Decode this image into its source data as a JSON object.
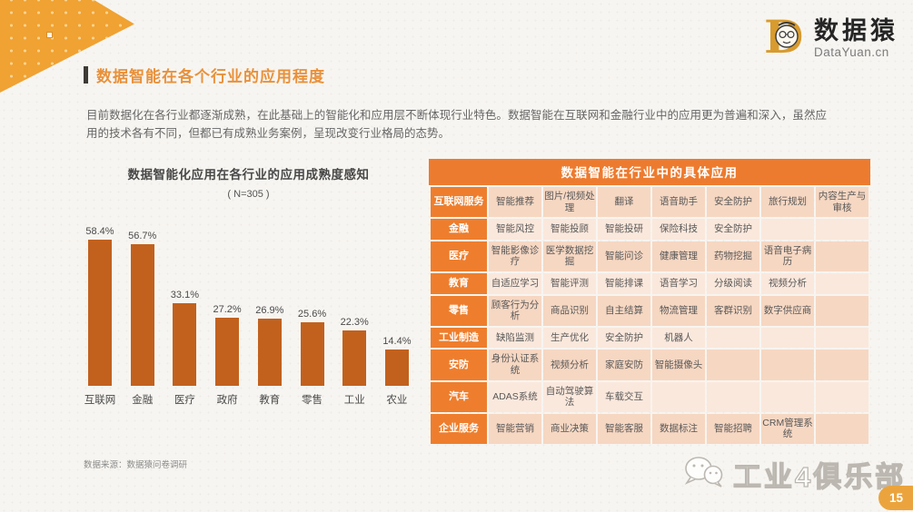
{
  "logo": {
    "letter": "D",
    "name_zh": "数据猿",
    "name_en": "DataYuan.cn"
  },
  "header": {
    "title": "数据智能在各个行业的应用程度"
  },
  "intro": "目前数据化在各行业都逐渐成熟，在此基础上的智能化和应用层不断体现行业特色。数据智能在互联网和金融行业中的应用更为普遍和深入，虽然应用的技术各有不同，但都已有成熟业务案例，呈现改变行业格局的态势。",
  "chart_data": {
    "type": "bar",
    "title": "数据智能化应用在各行业的应用成熟度感知",
    "subtitle": "( N=305 )",
    "categories": [
      "互联网",
      "金融",
      "医疗",
      "政府",
      "教育",
      "零售",
      "工业",
      "农业"
    ],
    "values": [
      58.4,
      56.7,
      33.1,
      27.2,
      26.9,
      25.6,
      22.3,
      14.4
    ],
    "value_labels": [
      "58.4%",
      "56.7%",
      "33.1%",
      "27.2%",
      "26.9%",
      "25.6%",
      "22.3%",
      "14.4%"
    ],
    "xlabel": "",
    "ylabel": "",
    "ylim": [
      0,
      60
    ],
    "grid": false,
    "legend": false,
    "bar_color": "#c2611e",
    "source": "数据来源：数据猿问卷调研"
  },
  "table": {
    "title": "数据智能在行业中的具体应用",
    "rows": [
      {
        "label": "互联网服务",
        "cells": [
          "智能推荐",
          "图片/视频处理",
          "翻译",
          "语音助手",
          "安全防护",
          "旅行规划",
          "内容生产与审核"
        ]
      },
      {
        "label": "金融",
        "cells": [
          "智能风控",
          "智能投顾",
          "智能投研",
          "保险科技",
          "安全防护",
          "",
          ""
        ]
      },
      {
        "label": "医疗",
        "cells": [
          "智能影像诊疗",
          "医学数据挖掘",
          "智能问诊",
          "健康管理",
          "药物挖掘",
          "语音电子病历",
          ""
        ]
      },
      {
        "label": "教育",
        "cells": [
          "自适应学习",
          "智能评测",
          "智能排课",
          "语音学习",
          "分级阅读",
          "视频分析",
          ""
        ]
      },
      {
        "label": "零售",
        "cells": [
          "顾客行为分析",
          "商品识别",
          "自主结算",
          "物流管理",
          "客群识别",
          "数字供应商",
          ""
        ]
      },
      {
        "label": "工业制造",
        "cells": [
          "缺陷监测",
          "生产优化",
          "安全防护",
          "机器人",
          "",
          "",
          ""
        ]
      },
      {
        "label": "安防",
        "cells": [
          "身份认证系统",
          "视频分析",
          "家庭安防",
          "智能摄像头",
          "",
          "",
          ""
        ]
      },
      {
        "label": "汽车",
        "cells": [
          "ADAS系统",
          "自动驾驶算法",
          "车载交互",
          "",
          "",
          "",
          ""
        ]
      },
      {
        "label": "企业服务",
        "cells": [
          "智能营销",
          "商业决策",
          "智能客服",
          "数据标注",
          "智能招聘",
          "CRM管理系统",
          ""
        ]
      }
    ]
  },
  "watermark": {
    "text": "工业4俱乐部"
  },
  "page": {
    "number": "15"
  },
  "colors": {
    "accent_orange": "#ed7b2f",
    "title_orange": "#e8913b",
    "bar_orange": "#c2611e",
    "deco_orange": "#f0a232",
    "row_dark": "#f6d7c2",
    "row_light": "#fbe8dc",
    "pill_orange": "#eba43d"
  }
}
